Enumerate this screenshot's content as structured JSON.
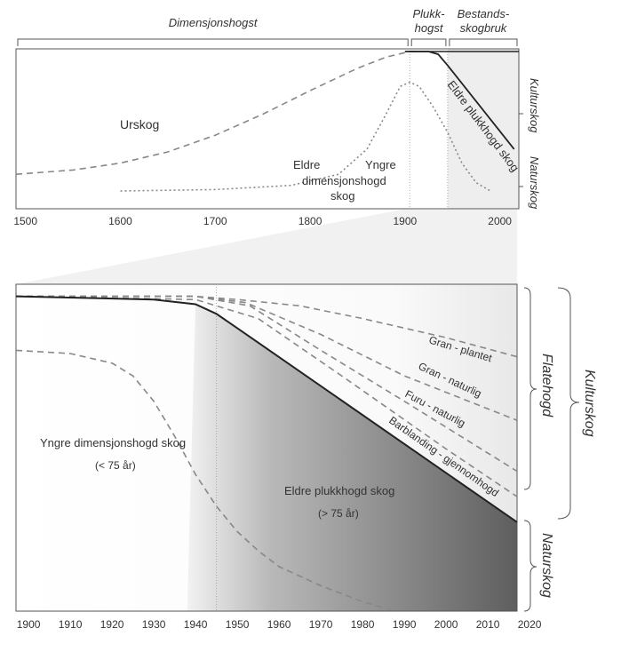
{
  "chart_data": [
    {
      "type": "line",
      "x_range": [
        1490,
        2020
      ],
      "x_ticks": [
        "1500",
        "1600",
        "1700",
        "1800",
        "1900",
        "2000"
      ],
      "x_tick_values": [
        1500,
        1600,
        1700,
        1800,
        1900,
        2000
      ],
      "y_range": [
        0,
        1
      ],
      "top_brackets": [
        {
          "label": "Dimensjonshogst",
          "from": 1490,
          "to": 1905
        },
        {
          "label": "Plukk-",
          "label2": "hogst",
          "from": 1905,
          "to": 1945
        },
        {
          "label": "Bestands-",
          "label2": "skogbruk",
          "from": 1945,
          "to": 2020
        }
      ],
      "right_labels": [
        "Kulturskog",
        "Naturskog"
      ],
      "shaded_period": [
        1945,
        2020
      ],
      "vertical_lines": [
        1905,
        1945
      ],
      "series": [
        {
          "style": "dashed",
          "x": [
            1490,
            1550,
            1600,
            1650,
            1700,
            1750,
            1800,
            1850,
            1880,
            1905,
            1920
          ],
          "y": [
            0.12,
            0.15,
            0.2,
            0.28,
            0.4,
            0.55,
            0.72,
            0.88,
            0.96,
            1.0,
            1.0
          ]
        },
        {
          "style": "dotted",
          "x": [
            1600,
            1700,
            1780,
            1830,
            1860,
            1880,
            1895,
            1905,
            1915,
            1930,
            1945,
            1960,
            1975,
            1990
          ],
          "y": [
            0.0,
            0.01,
            0.04,
            0.12,
            0.3,
            0.55,
            0.75,
            0.78,
            0.75,
            0.6,
            0.42,
            0.2,
            0.06,
            0.0
          ]
        },
        {
          "style": "solid",
          "x": [
            1900,
            1925,
            1935,
            1945,
            2015
          ],
          "y": [
            1.0,
            1.0,
            0.98,
            0.9,
            0.3
          ]
        }
      ],
      "annotations": {
        "urskog": "Urskog",
        "eldre": "Eldre",
        "yngre": "Yngre",
        "dimensjon": "dimensjonshogd",
        "skog": "skog",
        "eldre_plukk": "Eldre plukkhogd skog"
      }
    },
    {
      "type": "line",
      "x_range": [
        1897,
        2017
      ],
      "x_ticks": [
        "1900",
        "1910",
        "1920",
        "1930",
        "1940",
        "1950",
        "1960",
        "1970",
        "1980",
        "1990",
        "2000",
        "2010",
        "2020"
      ],
      "x_tick_values": [
        1900,
        1910,
        1920,
        1930,
        1940,
        1950,
        1960,
        1970,
        1980,
        1990,
        2000,
        2010,
        2020
      ],
      "y_range": [
        0,
        1
      ],
      "vertical_lines": [
        1945
      ],
      "right_labels": [
        "Flatehogd",
        "Kulturskog",
        "Naturskog"
      ],
      "series": [
        {
          "name": "Gran - plantet",
          "style": "dashed",
          "x": [
            1897,
            1940,
            1950,
            1965,
            1980,
            2000,
            2017
          ],
          "y": [
            0.99,
            0.99,
            0.98,
            0.96,
            0.92,
            0.86,
            0.8
          ]
        },
        {
          "name": "Gran - naturlig",
          "style": "dashed",
          "x": [
            1897,
            1940,
            1952,
            1970,
            1990,
            2017
          ],
          "y": [
            0.99,
            0.99,
            0.97,
            0.87,
            0.74,
            0.6
          ]
        },
        {
          "name": "Furu - naturlig",
          "style": "dashed",
          "x": [
            1897,
            1940,
            1953,
            1970,
            1990,
            2017
          ],
          "y": [
            0.99,
            0.99,
            0.96,
            0.82,
            0.66,
            0.44
          ]
        },
        {
          "name": "Barblanding - gjennomhogd",
          "style": "dashed",
          "x": [
            1897,
            1940,
            1955,
            1975,
            2000,
            2017
          ],
          "y": [
            0.99,
            0.98,
            0.92,
            0.74,
            0.51,
            0.36
          ]
        },
        {
          "name": "",
          "style": "solid",
          "x": [
            1897,
            1930,
            1940,
            1945,
            1950,
            2017
          ],
          "y": [
            0.99,
            0.98,
            0.965,
            0.935,
            0.89,
            0.28
          ]
        },
        {
          "name": "",
          "style": "dashed",
          "x": [
            1897,
            1910,
            1920,
            1925,
            1930,
            1935,
            1940,
            1945,
            1950,
            1955,
            1960,
            1970,
            1980,
            1988
          ],
          "y": [
            0.82,
            0.81,
            0.78,
            0.74,
            0.66,
            0.55,
            0.43,
            0.33,
            0.25,
            0.19,
            0.14,
            0.08,
            0.03,
            0.0
          ]
        }
      ],
      "annotations": {
        "yngre_label": "Yngre dimensjonshogd skog",
        "yngre_age": "(< 75 år)",
        "eldre_label": "Eldre plukkhogd skog",
        "eldre_age": "(> 75 år)"
      }
    }
  ],
  "colors": {
    "axis": "#555555",
    "line_solid": "#222222",
    "line_dashed": "#888888",
    "shade_dark": "#6e6e6e",
    "shade_light": "#f4f4f4"
  }
}
